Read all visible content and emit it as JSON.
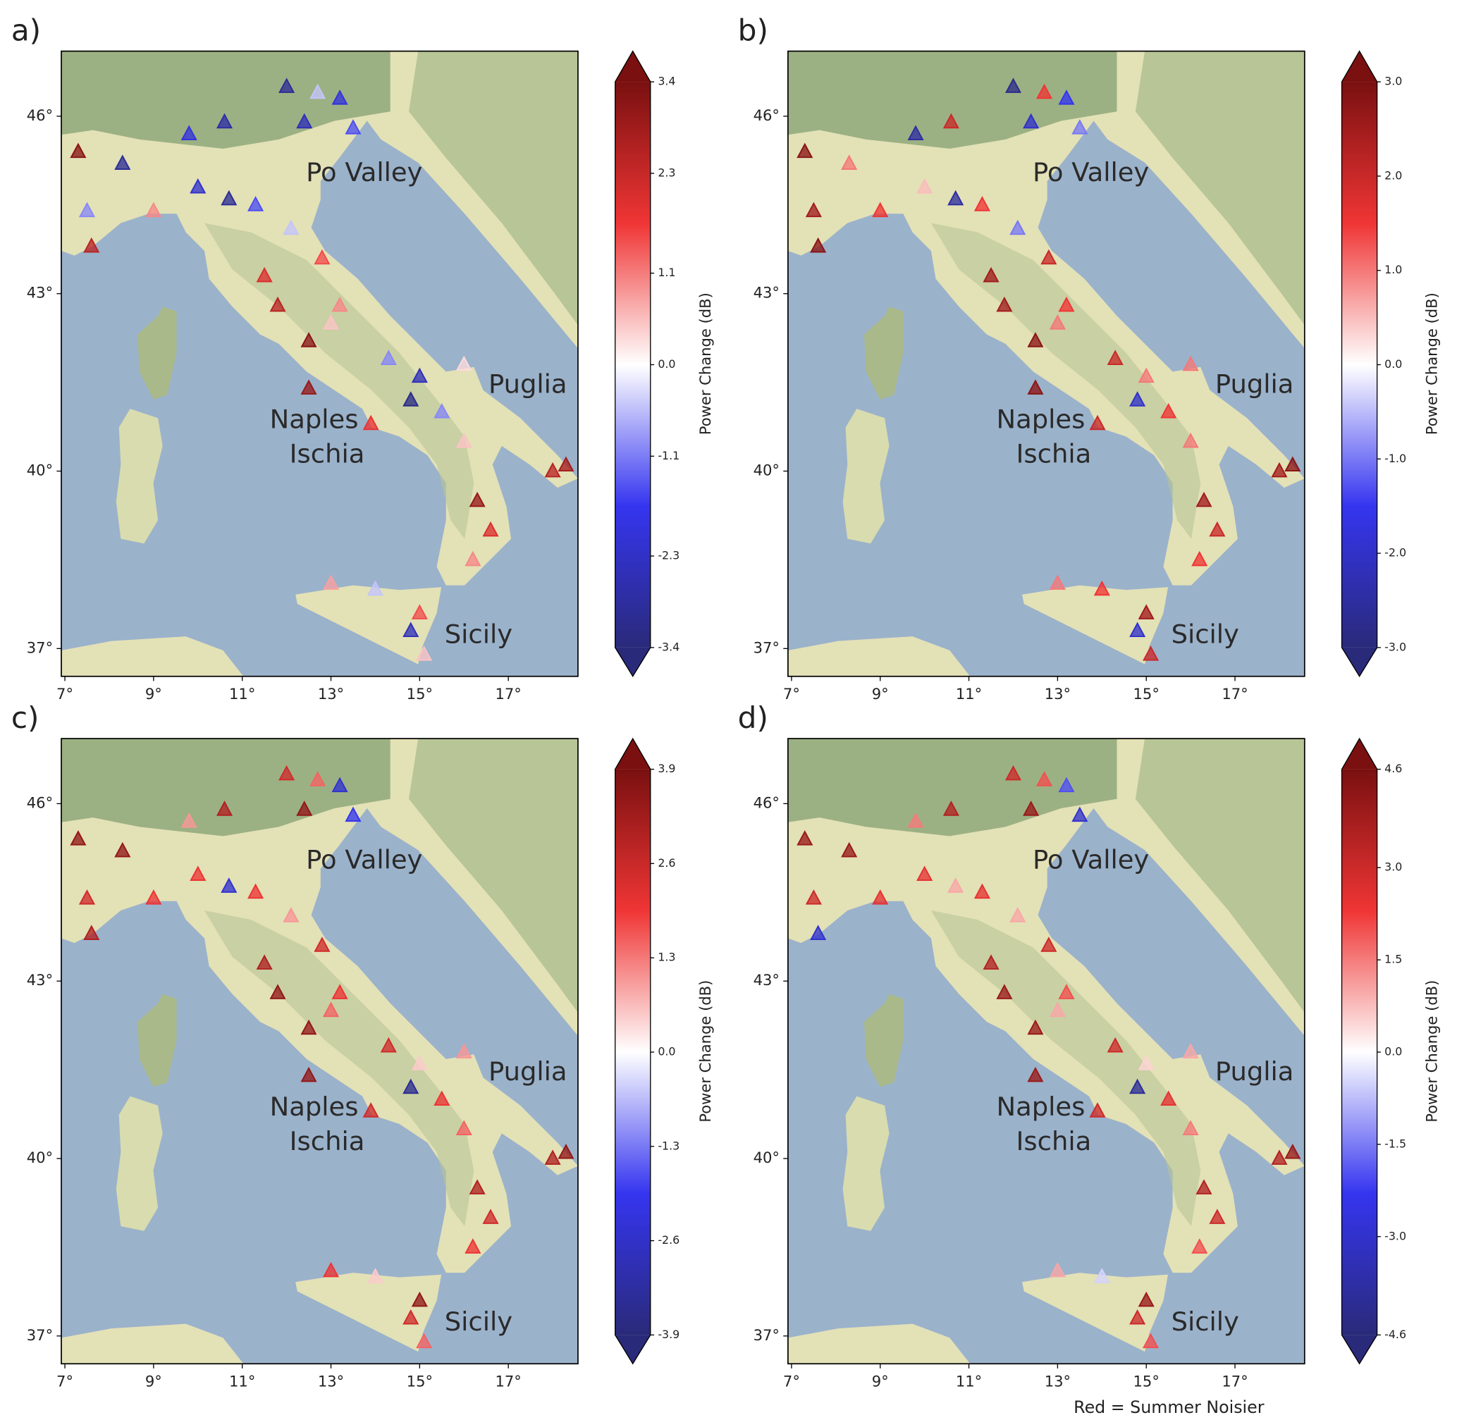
{
  "chart_data": [
    {
      "type": "scatter",
      "panel_label": "a)",
      "x": [
        12.0,
        12.7,
        13.2,
        12.4,
        13.5,
        10.6,
        9.8,
        8.3,
        7.3,
        10.0,
        10.7,
        7.5,
        7.6,
        11.3,
        12.1,
        12.8,
        11.5,
        13.2,
        12.5,
        13.0,
        14.3,
        15.0,
        14.8,
        13.9,
        15.5,
        16.0,
        16.3,
        16.6,
        16.2,
        18.0,
        18.3,
        13.0,
        14.0,
        14.8,
        15.0,
        15.1,
        11.8,
        16.0,
        12.5,
        9.0
      ],
      "y": [
        46.5,
        46.4,
        46.3,
        45.9,
        45.8,
        45.9,
        45.7,
        45.2,
        45.4,
        44.8,
        44.6,
        44.4,
        43.8,
        44.5,
        44.1,
        43.6,
        43.3,
        42.8,
        42.2,
        42.5,
        41.9,
        41.6,
        41.2,
        40.8,
        41.0,
        40.5,
        39.5,
        39.0,
        38.5,
        40.0,
        40.1,
        38.1,
        38.0,
        37.3,
        37.6,
        36.9,
        42.8,
        41.8,
        41.4,
        44.4
      ],
      "values": [
        -3.0,
        -0.5,
        -2.0,
        -2.5,
        -1.5,
        -2.8,
        -2.0,
        -3.0,
        3.2,
        -2.2,
        -3.0,
        -1.0,
        2.5,
        -1.5,
        -0.5,
        1.5,
        2.0,
        1.0,
        3.2,
        0.5,
        -1.0,
        -2.5,
        -3.2,
        1.8,
        -1.0,
        0.5,
        3.0,
        2.0,
        1.0,
        2.5,
        2.8,
        0.8,
        -0.5,
        -2.5,
        1.5,
        0.5,
        2.5,
        0.3,
        3.0,
        1.0
      ],
      "xlim": [
        6.92,
        18.57
      ],
      "ylim": [
        36.53,
        47.1
      ],
      "xticks": [
        {
          "value": 7,
          "label": "7°"
        },
        {
          "value": 9,
          "label": "9°"
        },
        {
          "value": 11,
          "label": "11°"
        },
        {
          "value": 13,
          "label": "13°"
        },
        {
          "value": 15,
          "label": "15°"
        },
        {
          "value": 17,
          "label": "17°"
        }
      ],
      "yticks": [
        {
          "value": 37,
          "label": "37°"
        },
        {
          "value": 40,
          "label": "40°"
        },
        {
          "value": 43,
          "label": "43°"
        },
        {
          "value": 46,
          "label": "46°"
        }
      ],
      "colorbar": {
        "label": "Power Change (dB)",
        "clim": [
          -3.4,
          3.4
        ],
        "ticks": [
          3.4,
          2.3,
          1.1,
          {
            "value": 0,
            "label": "0.0"
          },
          -1.1,
          -2.3,
          -3.4
        ]
      },
      "colormap": [
        "#2a2a7a",
        "#3535f0",
        "#ffffff",
        "#f03535",
        "#7a1010"
      ],
      "annotations": [
        "Po Valley",
        "Puglia",
        "Naples",
        "Ischia",
        "Sicily"
      ]
    },
    {
      "type": "scatter",
      "panel_label": "b)",
      "x": [
        12.0,
        12.7,
        13.2,
        12.4,
        13.5,
        10.6,
        9.8,
        8.3,
        7.3,
        10.0,
        10.7,
        7.5,
        7.6,
        11.3,
        12.1,
        12.8,
        11.5,
        13.2,
        12.5,
        13.0,
        14.3,
        15.0,
        14.8,
        13.9,
        15.5,
        16.0,
        16.3,
        16.6,
        16.2,
        18.0,
        18.3,
        13.0,
        14.0,
        14.8,
        15.0,
        15.1,
        11.8,
        16.0,
        12.5,
        9.0
      ],
      "y": [
        46.5,
        46.4,
        46.3,
        45.9,
        45.8,
        45.9,
        45.7,
        45.2,
        45.4,
        44.8,
        44.6,
        44.4,
        43.8,
        44.5,
        44.1,
        43.6,
        43.3,
        42.8,
        42.2,
        42.5,
        41.9,
        41.6,
        41.2,
        40.8,
        41.0,
        40.5,
        39.5,
        39.0,
        38.5,
        40.0,
        40.1,
        38.1,
        38.0,
        37.3,
        37.6,
        36.9,
        42.8,
        41.8,
        41.4,
        44.4
      ],
      "values": [
        -2.8,
        1.5,
        -1.5,
        -2.0,
        -1.0,
        2.0,
        -2.5,
        1.0,
        2.8,
        0.5,
        -2.5,
        2.5,
        2.8,
        1.5,
        -1.0,
        2.0,
        2.5,
        1.5,
        2.8,
        1.0,
        2.0,
        1.0,
        -2.0,
        2.0,
        1.5,
        1.0,
        2.5,
        2.0,
        1.5,
        2.5,
        2.8,
        1.0,
        1.5,
        -2.0,
        2.5,
        2.0,
        2.5,
        1.0,
        2.8,
        1.5
      ],
      "xlim": [
        6.92,
        18.57
      ],
      "ylim": [
        36.53,
        47.1
      ],
      "xticks": [
        {
          "value": 7,
          "label": "7°"
        },
        {
          "value": 9,
          "label": "9°"
        },
        {
          "value": 11,
          "label": "11°"
        },
        {
          "value": 13,
          "label": "13°"
        },
        {
          "value": 15,
          "label": "15°"
        },
        {
          "value": 17,
          "label": "17°"
        }
      ],
      "yticks": [
        {
          "value": 37,
          "label": "37°"
        },
        {
          "value": 40,
          "label": "40°"
        },
        {
          "value": 43,
          "label": "43°"
        },
        {
          "value": 46,
          "label": "46°"
        }
      ],
      "colorbar": {
        "label": "Power Change (dB)",
        "clim": [
          -3.0,
          3.0
        ],
        "ticks": [
          {
            "value": 3,
            "label": "3.0"
          },
          {
            "value": 2,
            "label": "2.0"
          },
          {
            "value": 1,
            "label": "1.0"
          },
          {
            "value": 0,
            "label": "0.0"
          },
          {
            "value": -1,
            "label": "-1.0"
          },
          {
            "value": -2,
            "label": "-2.0"
          },
          {
            "value": -3,
            "label": "-3.0"
          }
        ]
      },
      "colormap": [
        "#2a2a7a",
        "#3535f0",
        "#ffffff",
        "#f03535",
        "#7a1010"
      ],
      "annotations": [
        "Po Valley",
        "Puglia",
        "Naples",
        "Ischia",
        "Sicily"
      ]
    },
    {
      "type": "scatter",
      "panel_label": "c)",
      "x": [
        12.0,
        12.7,
        13.2,
        12.4,
        13.5,
        10.6,
        9.8,
        8.3,
        7.3,
        10.0,
        10.7,
        7.5,
        7.6,
        11.3,
        12.1,
        12.8,
        11.5,
        13.2,
        12.5,
        13.0,
        14.3,
        15.0,
        14.8,
        13.9,
        15.5,
        16.0,
        16.3,
        16.6,
        16.2,
        18.0,
        18.3,
        13.0,
        14.0,
        14.8,
        15.0,
        15.1,
        11.8,
        16.0,
        12.5,
        9.0
      ],
      "y": [
        46.5,
        46.4,
        46.3,
        45.9,
        45.8,
        45.9,
        45.7,
        45.2,
        45.4,
        44.8,
        44.6,
        44.4,
        43.8,
        44.5,
        44.1,
        43.6,
        43.3,
        42.8,
        42.2,
        42.5,
        41.9,
        41.6,
        41.2,
        40.8,
        41.0,
        40.5,
        39.5,
        39.0,
        38.5,
        40.0,
        40.1,
        38.1,
        38.0,
        37.3,
        37.6,
        36.9,
        42.8,
        41.8,
        41.4,
        44.4
      ],
      "values": [
        2.5,
        1.5,
        -2.5,
        3.5,
        -2.0,
        3.0,
        1.0,
        3.5,
        3.5,
        2.0,
        -2.5,
        2.5,
        3.0,
        2.0,
        1.0,
        2.5,
        3.0,
        2.0,
        3.5,
        1.5,
        2.5,
        0.5,
        -3.5,
        2.5,
        2.0,
        1.5,
        3.0,
        2.5,
        2.0,
        3.0,
        3.5,
        2.0,
        0.5,
        2.5,
        3.5,
        1.5,
        3.5,
        1.0,
        3.5,
        2.0
      ],
      "xlim": [
        6.92,
        18.57
      ],
      "ylim": [
        36.53,
        47.1
      ],
      "xticks": [
        {
          "value": 7,
          "label": "7°"
        },
        {
          "value": 9,
          "label": "9°"
        },
        {
          "value": 11,
          "label": "11°"
        },
        {
          "value": 13,
          "label": "13°"
        },
        {
          "value": 15,
          "label": "15°"
        },
        {
          "value": 17,
          "label": "17°"
        }
      ],
      "yticks": [
        {
          "value": 37,
          "label": "37°"
        },
        {
          "value": 40,
          "label": "40°"
        },
        {
          "value": 43,
          "label": "43°"
        },
        {
          "value": 46,
          "label": "46°"
        }
      ],
      "colorbar": {
        "label": "Power Change (dB)",
        "clim": [
          -3.9,
          3.9
        ],
        "ticks": [
          3.9,
          2.6,
          1.3,
          {
            "value": 0,
            "label": "0.0"
          },
          -1.3,
          -2.6,
          -3.9
        ]
      },
      "colormap": [
        "#2a2a7a",
        "#3535f0",
        "#ffffff",
        "#f03535",
        "#7a1010"
      ],
      "annotations": [
        "Po Valley",
        "Puglia",
        "Naples",
        "Ischia",
        "Sicily"
      ]
    },
    {
      "type": "scatter",
      "panel_label": "d)",
      "x": [
        12.0,
        12.7,
        13.2,
        12.4,
        13.5,
        10.6,
        9.8,
        8.3,
        7.3,
        10.0,
        10.7,
        7.5,
        7.6,
        11.3,
        12.1,
        12.8,
        11.5,
        13.2,
        12.5,
        13.0,
        14.3,
        15.0,
        14.8,
        13.9,
        15.5,
        16.0,
        16.3,
        16.6,
        16.2,
        18.0,
        18.3,
        13.0,
        14.0,
        14.8,
        15.0,
        15.1,
        11.8,
        16.0,
        12.5,
        9.0
      ],
      "y": [
        46.5,
        46.4,
        46.3,
        45.9,
        45.8,
        45.9,
        45.7,
        45.2,
        45.4,
        44.8,
        44.6,
        44.4,
        43.8,
        44.5,
        44.1,
        43.6,
        43.3,
        42.8,
        42.2,
        42.5,
        41.9,
        41.6,
        41.2,
        40.8,
        41.0,
        40.5,
        39.5,
        39.0,
        38.5,
        40.0,
        40.1,
        38.1,
        38.0,
        37.3,
        37.6,
        36.9,
        42.8,
        41.8,
        41.4,
        44.4
      ],
      "values": [
        3.0,
        2.0,
        -2.0,
        4.0,
        -3.0,
        3.5,
        1.5,
        4.0,
        4.0,
        2.5,
        1.0,
        3.0,
        -3.0,
        2.5,
        1.0,
        3.0,
        3.5,
        2.0,
        4.0,
        1.0,
        3.0,
        0.5,
        -4.0,
        3.0,
        2.5,
        1.5,
        3.5,
        3.0,
        2.0,
        3.5,
        4.0,
        1.0,
        -0.5,
        3.0,
        4.0,
        2.0,
        4.0,
        1.0,
        4.0,
        2.5
      ],
      "xlim": [
        6.92,
        18.57
      ],
      "ylim": [
        36.53,
        47.1
      ],
      "xticks": [
        {
          "value": 7,
          "label": "7°"
        },
        {
          "value": 9,
          "label": "9°"
        },
        {
          "value": 11,
          "label": "11°"
        },
        {
          "value": 13,
          "label": "13°"
        },
        {
          "value": 15,
          "label": "15°"
        },
        {
          "value": 17,
          "label": "17°"
        }
      ],
      "yticks": [
        {
          "value": 37,
          "label": "37°"
        },
        {
          "value": 40,
          "label": "40°"
        },
        {
          "value": 43,
          "label": "43°"
        },
        {
          "value": 46,
          "label": "46°"
        }
      ],
      "colorbar": {
        "label": "Power Change (dB)",
        "clim": [
          -4.6,
          4.6
        ],
        "ticks": [
          4.6,
          {
            "value": 3,
            "label": "3.0"
          },
          1.5,
          {
            "value": 0,
            "label": "0.0"
          },
          -1.5,
          {
            "value": -3,
            "label": "-3.0"
          },
          -4.6
        ]
      },
      "colormap": [
        "#2a2a7a",
        "#3535f0",
        "#ffffff",
        "#f03535",
        "#7a1010"
      ],
      "annotations": [
        "Po Valley",
        "Puglia",
        "Naples",
        "Ischia",
        "Sicily"
      ],
      "footnote": "Red = Summer Noisier"
    }
  ]
}
